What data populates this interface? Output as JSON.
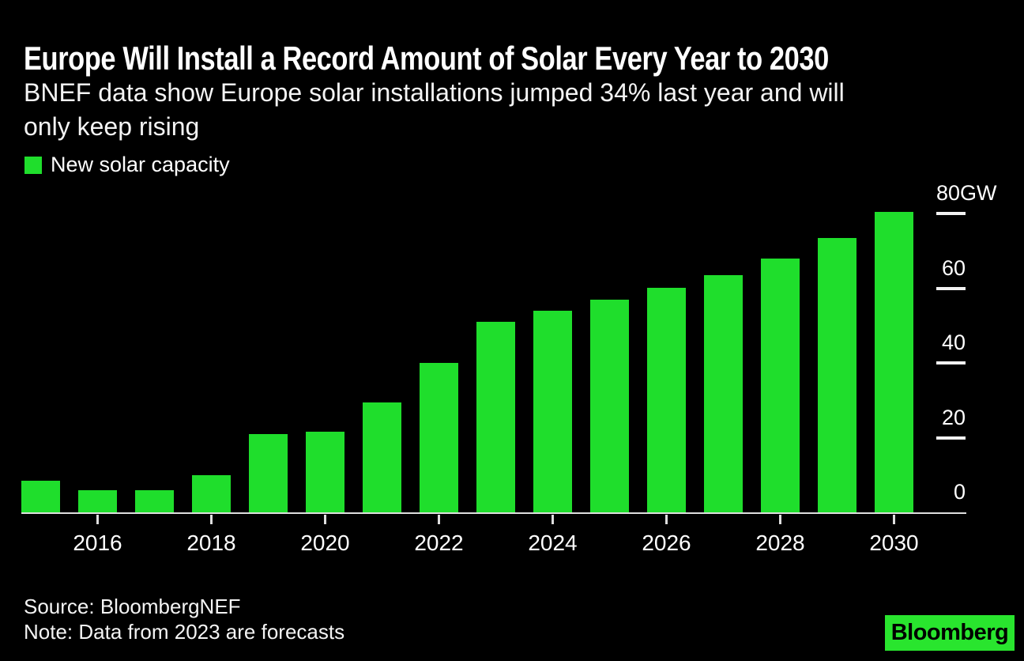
{
  "header": {
    "title": "Europe Will Install a Record Amount of Solar Every Year to 2030",
    "subtitle": "BNEF data show Europe solar installations jumped 34% last year and will only keep rising",
    "subtitle_lines": [
      "BNEF data show Europe solar installations jumped 34% last year and will",
      "only keep rising"
    ]
  },
  "legend": {
    "label": "New solar capacity",
    "swatch_color": "#1FDE2C"
  },
  "chart_data": {
    "type": "bar",
    "title": "Europe Will Install a Record Amount of Solar Every Year to 2030",
    "series_name": "New solar capacity",
    "unit": "GW",
    "categories": [
      2015,
      2016,
      2017,
      2018,
      2019,
      2020,
      2021,
      2022,
      2023,
      2024,
      2025,
      2026,
      2027,
      2028,
      2029,
      2030
    ],
    "values": [
      8.5,
      6,
      6,
      10,
      21,
      21.5,
      29.5,
      40,
      51,
      54,
      57,
      60,
      63.5,
      68,
      73.5,
      80.5
    ],
    "xlabel": "",
    "ylabel": "GW",
    "ylim": [
      0,
      80
    ],
    "y_ticks": [
      80,
      60,
      40,
      20,
      0
    ],
    "y_unit_suffix": "GW",
    "x_tick_years": [
      2016,
      2018,
      2020,
      2022,
      2024,
      2026,
      2028,
      2030
    ],
    "grid": false,
    "legend_position": "top-left",
    "bar_color": "#1FDE2C",
    "background_color": "#000000",
    "axis_color": "#DEDEDE"
  },
  "footer": {
    "source": "Source: BloombergNEF",
    "note": "Note: Data from 2023 are forecasts",
    "logo_text": "Bloomberg",
    "logo_color": "#29E52E"
  }
}
